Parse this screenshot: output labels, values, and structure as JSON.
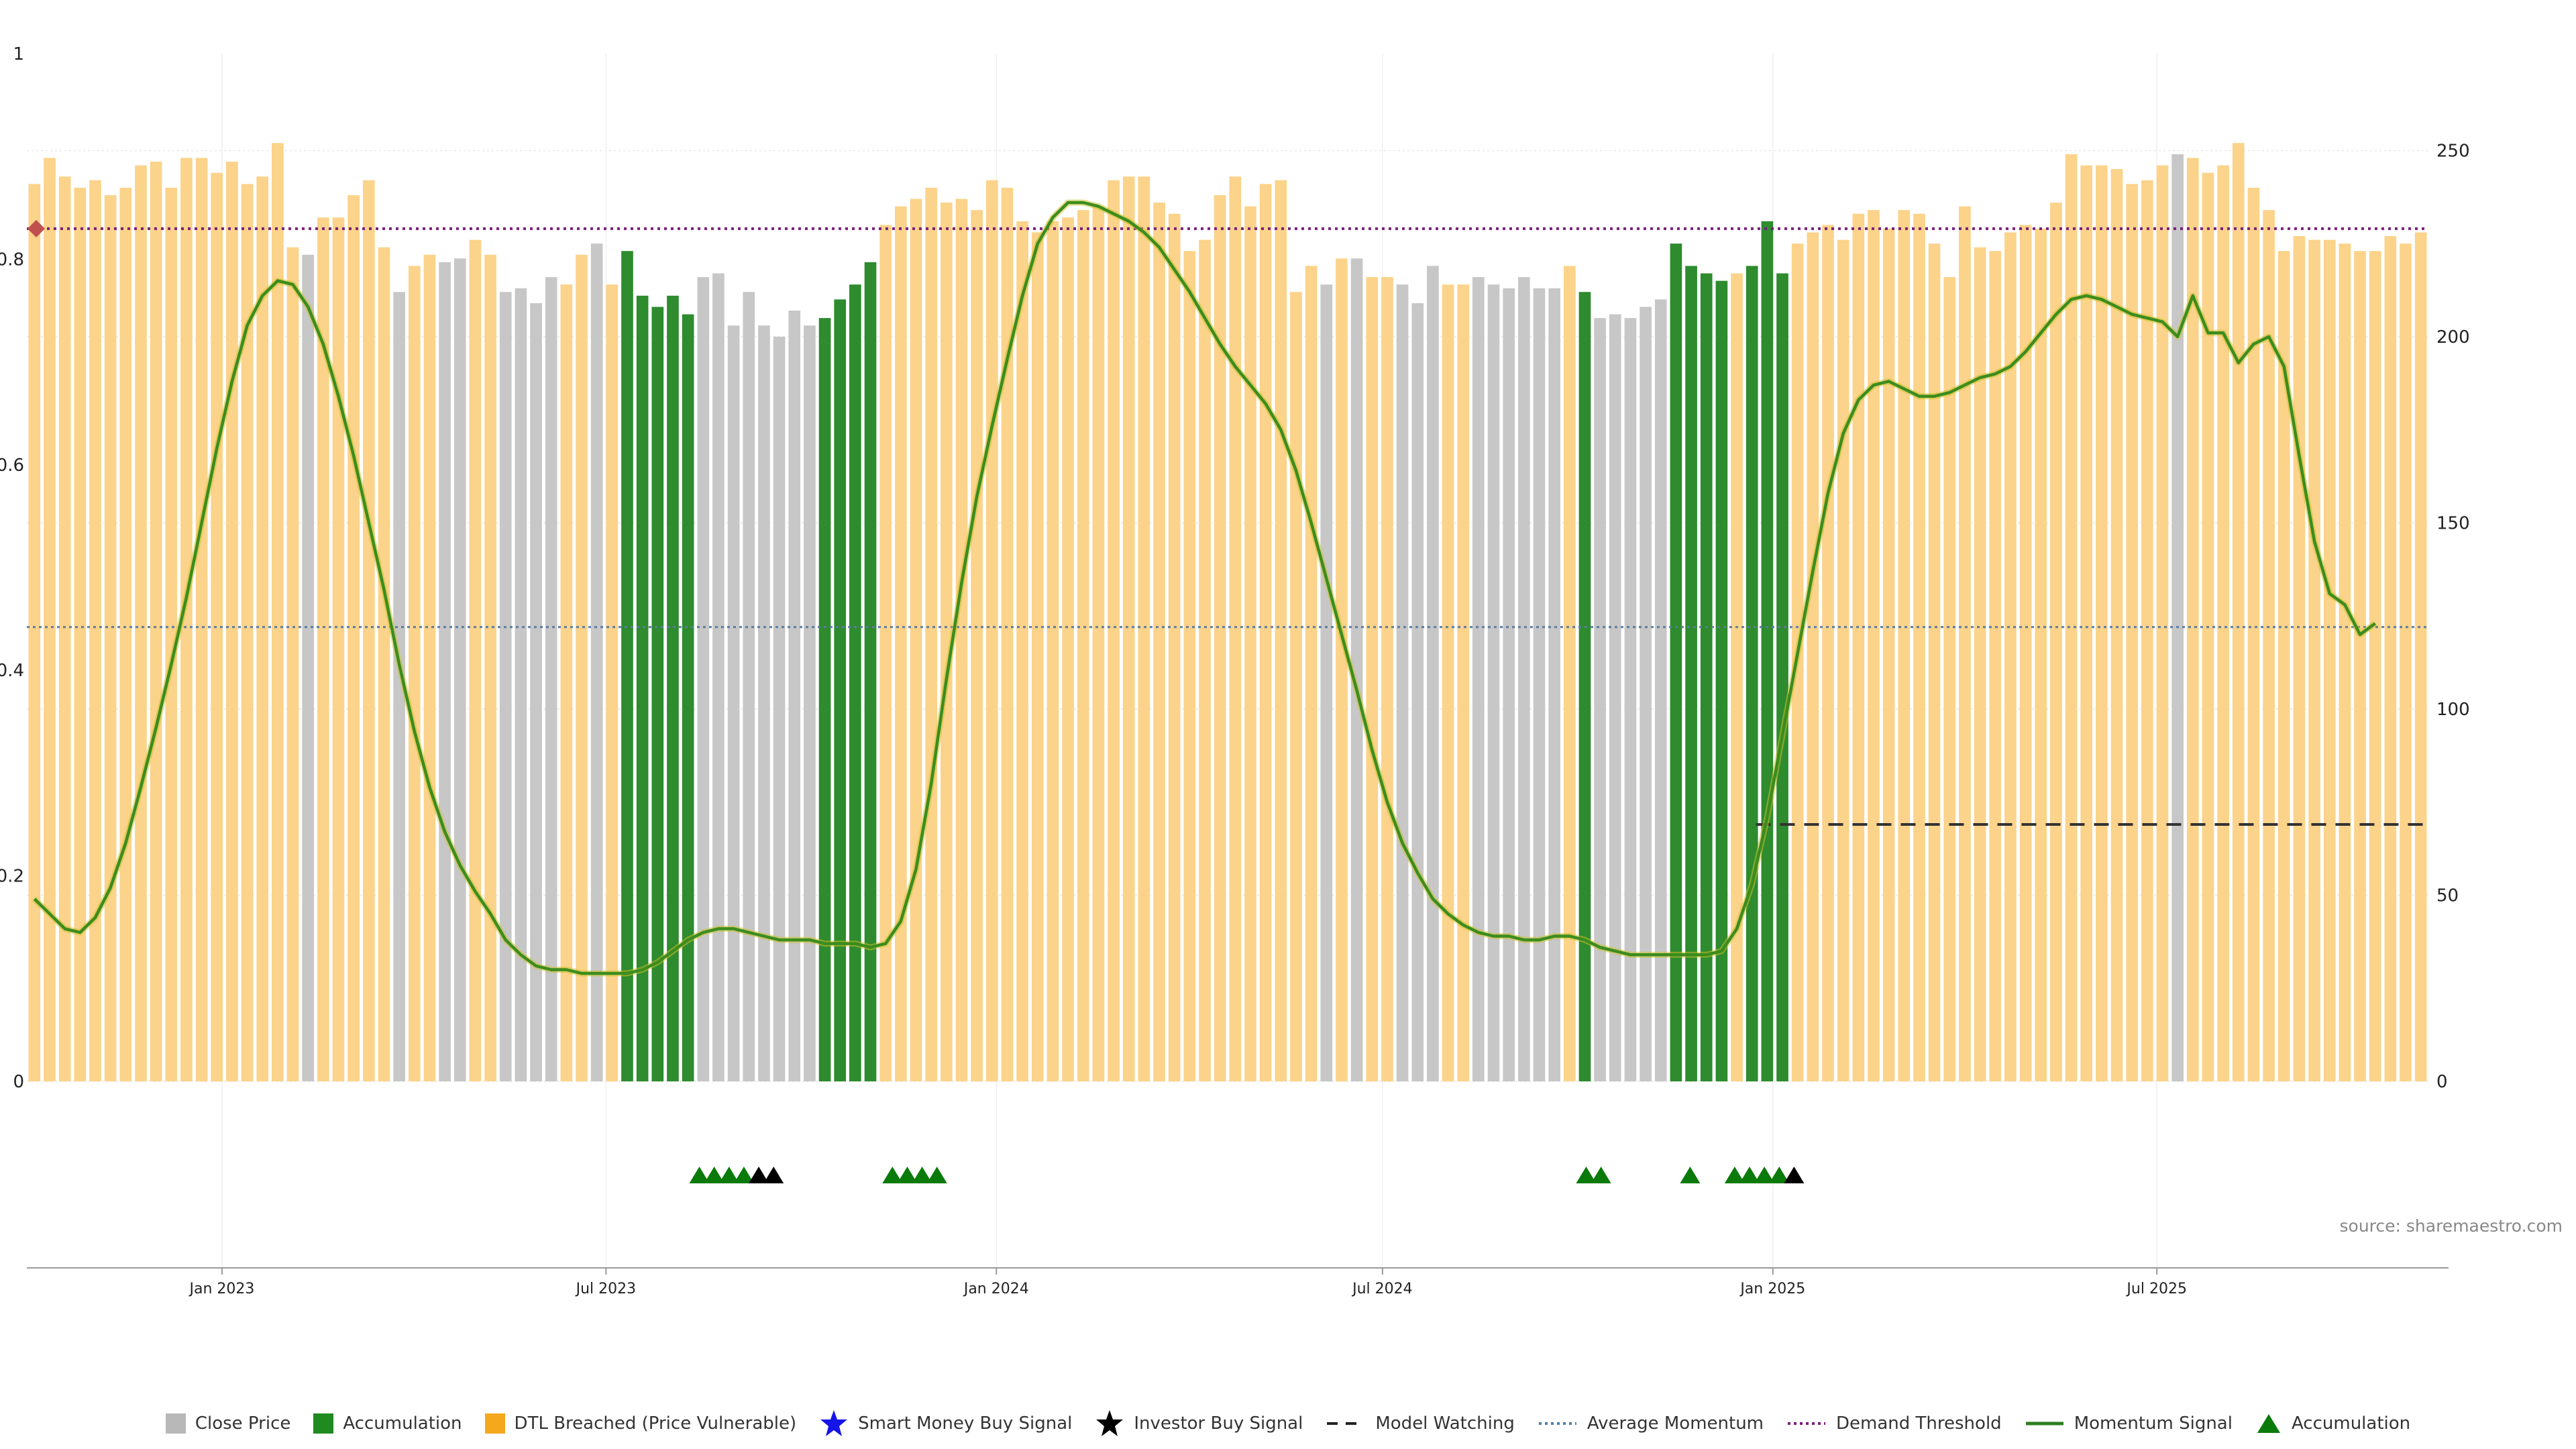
{
  "chart_data": {
    "type": "bar",
    "title": "",
    "source": "source: sharemaestro.com",
    "start_date": "2022-10-01",
    "end_date": "2025-11-06",
    "bar_interval_days": 7,
    "ylim_left": [
      0,
      1
    ],
    "ylim_right": [
      0,
      276
    ],
    "yticks_left": [
      "0",
      "0.2",
      "0.4",
      "0.6",
      "0.8",
      "1"
    ],
    "yticks_right": [
      "0",
      "50",
      "100",
      "150",
      "200",
      "250"
    ],
    "xticks": [
      {
        "label": "Jan 2023",
        "date": "2023-01-01"
      },
      {
        "label": "Jul 2023",
        "date": "2023-07-01"
      },
      {
        "label": "Jan 2024",
        "date": "2024-01-01"
      },
      {
        "label": "Jul 2024",
        "date": "2024-07-01"
      },
      {
        "label": "Jan 2025",
        "date": "2025-01-01"
      },
      {
        "label": "Jul 2025",
        "date": "2025-07-01"
      }
    ],
    "bar_category_codes": "DDDDDDDDDDDDDDDDDDGDDDDDGDDGGDDGGGGDDGDAAAAAGGGGGGGGAAAADDDDDDDDDDDDDDDDDDDDDDDDDDDDDGDGDDGGGDDGGGGGGDAGGGGGAAAADAAADDDDDDDDDDDDDDDDDDDDDDDDDGDDDDDDDDDDDDDDDDDDDDDDDDD",
    "category_legend": {
      "G": "Close Price",
      "A": "Accumulation",
      "D": "DTL Breached (Price Vulnerable)"
    },
    "close_price": [
      241,
      248,
      243,
      240,
      242,
      238,
      240,
      246,
      247,
      240,
      248,
      248,
      244,
      247,
      241,
      243,
      252,
      224,
      222,
      232,
      232,
      238,
      242,
      224,
      212,
      219,
      222,
      220,
      221,
      226,
      222,
      212,
      213,
      209,
      216,
      214,
      222,
      225,
      214,
      223,
      211,
      208,
      211,
      206,
      216,
      217,
      203,
      212,
      203,
      200,
      207,
      203,
      205,
      210,
      214,
      220,
      230,
      235,
      237,
      240,
      236,
      237,
      234,
      242,
      240,
      231,
      228,
      231,
      232,
      234,
      235,
      242,
      243,
      243,
      236,
      233,
      223,
      226,
      238,
      243,
      235,
      241,
      242,
      212,
      219,
      214,
      221,
      221,
      216,
      216,
      214,
      209,
      219,
      214,
      214,
      216,
      214,
      213,
      216,
      213,
      213,
      219,
      212,
      205,
      206,
      205,
      208,
      210,
      225,
      219,
      217,
      215,
      217,
      219,
      231,
      217,
      225,
      228,
      230,
      226,
      233,
      234,
      229,
      234,
      233,
      225,
      216,
      235,
      224,
      223,
      228,
      230,
      229,
      236,
      249,
      246,
      246,
      245,
      241,
      242,
      246,
      249,
      248,
      244,
      246,
      252,
      240,
      234,
      223,
      227,
      226,
      226,
      225,
      223,
      223,
      227,
      225,
      228
    ],
    "demand_threshold": 229,
    "average_momentum": 122,
    "model_watching": {
      "value": 69,
      "start_date": "2024-12-24"
    },
    "momentum_signal": [
      49,
      45,
      41,
      40,
      44,
      52,
      64,
      79,
      95,
      112,
      130,
      150,
      170,
      188,
      203,
      211,
      215,
      214,
      208,
      198,
      184,
      168,
      150,
      132,
      112,
      94,
      79,
      67,
      58,
      51,
      45,
      38,
      34,
      31,
      30,
      30,
      29,
      29,
      29,
      29,
      30,
      32,
      35,
      38,
      40,
      41,
      41,
      40,
      39,
      38,
      38,
      38,
      37,
      37,
      37,
      36,
      37,
      43,
      57,
      80,
      108,
      134,
      157,
      176,
      194,
      211,
      225,
      232,
      236,
      236,
      235,
      233,
      231,
      228,
      224,
      218,
      212,
      205,
      198,
      192,
      187,
      182,
      175,
      164,
      150,
      135,
      120,
      105,
      89,
      75,
      64,
      56,
      49,
      45,
      42,
      40,
      39,
      39,
      38,
      38,
      39,
      39,
      38,
      36,
      35,
      34,
      34,
      34,
      34,
      34,
      34,
      35,
      41,
      53,
      71,
      93,
      115,
      137,
      158,
      174,
      183,
      187,
      188,
      186,
      184,
      184,
      185,
      187,
      189,
      190,
      192,
      196,
      201,
      206,
      210,
      211,
      210,
      208,
      206,
      205,
      204,
      200,
      211,
      201,
      201,
      193,
      198,
      200,
      192,
      168,
      145,
      131,
      128,
      120,
      123
    ],
    "accumulation_markers": [
      {
        "date": "2023-08-14",
        "type": "accumulation"
      },
      {
        "date": "2023-08-21",
        "type": "accumulation"
      },
      {
        "date": "2023-08-28",
        "type": "accumulation"
      },
      {
        "date": "2023-09-04",
        "type": "accumulation"
      },
      {
        "date": "2023-09-11",
        "type": "investor_buy"
      },
      {
        "date": "2023-09-18",
        "type": "investor_buy"
      },
      {
        "date": "2023-11-13",
        "type": "accumulation"
      },
      {
        "date": "2023-11-20",
        "type": "accumulation"
      },
      {
        "date": "2023-11-27",
        "type": "accumulation"
      },
      {
        "date": "2023-12-04",
        "type": "accumulation"
      },
      {
        "date": "2024-10-05",
        "type": "accumulation"
      },
      {
        "date": "2024-10-12",
        "type": "accumulation"
      },
      {
        "date": "2024-11-23",
        "type": "accumulation"
      },
      {
        "date": "2024-12-14",
        "type": "accumulation"
      },
      {
        "date": "2024-12-21",
        "type": "accumulation"
      },
      {
        "date": "2024-12-28",
        "type": "accumulation"
      },
      {
        "date": "2025-01-04",
        "type": "accumulation"
      },
      {
        "date": "2025-01-11",
        "type": "investor_buy"
      }
    ],
    "demand_threshold_marker_color": "#c0504d",
    "colors": {
      "close_price": "#c7c7c7",
      "accumulation": "#2e8b2e",
      "dtl_breached": "#fbd38a",
      "momentum": "#3c8c1e",
      "momentum_glow": "#c9c12a",
      "demand_threshold": "#7a1f7a",
      "average_momentum": "#5b7da0",
      "model_watching": "#333333",
      "marker_accumulation": "#0a7a0a",
      "marker_investor": "#000000"
    }
  },
  "legend": [
    {
      "label": "Close Price",
      "kind": "box",
      "color": "#b8b8b8"
    },
    {
      "label": "Accumulation",
      "kind": "box",
      "color": "#1f8a1f"
    },
    {
      "label": "DTL Breached (Price Vulnerable)",
      "kind": "box",
      "color": "#f5a81c"
    },
    {
      "label": "Smart Money Buy Signal",
      "kind": "star",
      "color": "#1515e8"
    },
    {
      "label": "Investor Buy Signal",
      "kind": "star",
      "color": "#000000"
    },
    {
      "label": "Model Watching",
      "kind": "dash",
      "color": "#222222"
    },
    {
      "label": "Average Momentum",
      "kind": "dot",
      "color": "#4f7fa8"
    },
    {
      "label": "Demand Threshold",
      "kind": "dot",
      "color": "#7a1f7a"
    },
    {
      "label": "Momentum Signal",
      "kind": "line",
      "color": "#2e7d1f"
    },
    {
      "label": "Accumulation",
      "kind": "triangle",
      "color": "#0a7a0a"
    }
  ]
}
